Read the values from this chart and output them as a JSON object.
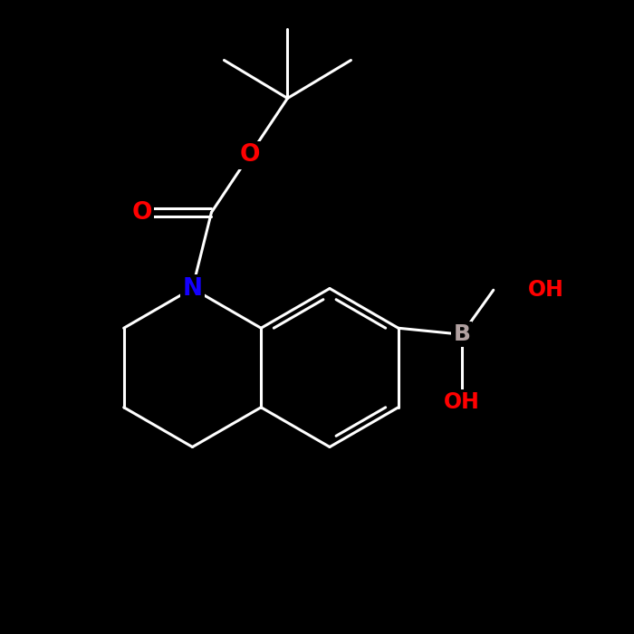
{
  "background_color": "#000000",
  "bond_color": "#ffffff",
  "N_color": "#1400ff",
  "O_color": "#ff0000",
  "B_color": "#b0a0a0",
  "bond_width": 2.2,
  "figsize": [
    7.0,
    7.0
  ],
  "dpi": 100,
  "xlim": [
    0,
    10
  ],
  "ylim": [
    0,
    10
  ],
  "label_fontsize": 16,
  "label_fontsize_small": 15
}
